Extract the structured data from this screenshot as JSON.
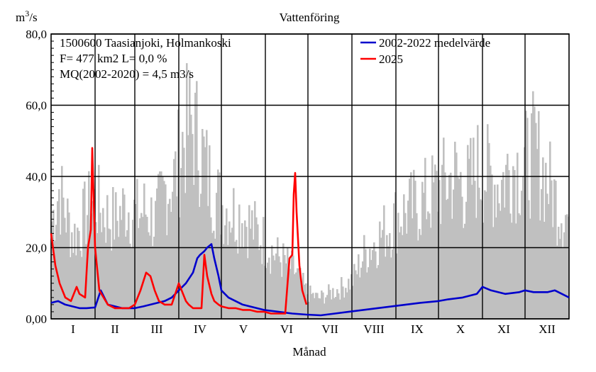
{
  "chart_data": {
    "type": "line",
    "title": "Vattenföring",
    "ylabel_base": "m",
    "ylabel_sup": "3",
    "ylabel_tail": "/s",
    "xlabel": "Månad",
    "ylim": [
      0,
      80
    ],
    "yticks": [
      "0,00",
      "20,0",
      "40,0",
      "60,0",
      "80,0"
    ],
    "ytick_values": [
      0,
      20,
      40,
      60,
      80
    ],
    "months": [
      "I",
      "II",
      "III",
      "IV",
      "V",
      "VI",
      "VII",
      "VIII",
      "IX",
      "X",
      "XI",
      "XII"
    ],
    "grid": true,
    "info_lines": [
      "1500600 Taasianjoki, Holmankoski",
      "F=    477 km2 L=  0,0 %",
      "MQ(2002-2020) = 4,5 m3/s"
    ],
    "legend": [
      {
        "label": "2002-2022 medelvärde",
        "color": "#0000cc"
      },
      {
        "label": "2025",
        "color": "#ff0000"
      }
    ],
    "range_color": "#c0c0c0",
    "range_envelope": {
      "x": [
        0,
        5,
        10,
        15,
        20,
        25,
        31,
        38,
        45,
        52,
        59,
        66,
        73,
        80,
        87,
        92,
        97,
        103,
        110,
        118,
        126,
        134,
        142,
        150,
        157,
        164,
        172,
        180,
        188,
        196,
        204,
        212,
        220,
        228,
        236,
        244,
        252,
        260,
        268,
        276,
        284,
        292,
        300,
        308,
        316,
        324,
        332,
        340,
        348,
        356,
        365
      ],
      "y": [
        38,
        50,
        40,
        32,
        35,
        42,
        45,
        40,
        38,
        44,
        40,
        42,
        38,
        50,
        55,
        68,
        75,
        70,
        55,
        45,
        42,
        40,
        35,
        30,
        25,
        22,
        18,
        10,
        8,
        10,
        12,
        15,
        25,
        30,
        35,
        40,
        42,
        45,
        48,
        52,
        55,
        50,
        58,
        55,
        52,
        60,
        58,
        65,
        55,
        45,
        38
      ]
    },
    "series": [
      {
        "name": "2002-2022 medelvärde",
        "color": "#0000cc",
        "x": [
          0,
          5,
          10,
          15,
          20,
          25,
          31,
          35,
          40,
          45,
          50,
          59,
          65,
          70,
          75,
          80,
          85,
          90,
          95,
          100,
          103,
          105,
          108,
          110,
          113,
          115,
          118,
          120,
          125,
          130,
          135,
          140,
          145,
          150,
          160,
          170,
          180,
          190,
          200,
          210,
          220,
          230,
          240,
          250,
          260,
          273,
          280,
          290,
          300,
          304,
          310,
          320,
          330,
          334,
          340,
          350,
          355,
          360,
          365
        ],
        "y": [
          4.5,
          5.0,
          4.0,
          3.5,
          3.0,
          3.0,
          3.2,
          8.0,
          4.0,
          3.5,
          3.0,
          3.0,
          3.5,
          4.0,
          4.5,
          5.0,
          6.0,
          8.0,
          10.0,
          13.0,
          17.0,
          18.0,
          19.0,
          20.0,
          21.0,
          17.0,
          12.0,
          8.0,
          6.0,
          5.0,
          4.0,
          3.5,
          3.0,
          2.5,
          2.0,
          1.5,
          1.2,
          1.0,
          1.5,
          2.0,
          2.5,
          3.0,
          3.5,
          4.0,
          4.5,
          5.0,
          5.5,
          6.0,
          7.0,
          9.0,
          8.0,
          7.0,
          7.5,
          8.0,
          7.5,
          7.5,
          8.0,
          7.0,
          6.0
        ]
      },
      {
        "name": "2025",
        "color": "#ff0000",
        "x": [
          0,
          3,
          6,
          10,
          14,
          18,
          20,
          24,
          26,
          28,
          29,
          31,
          34,
          40,
          45,
          50,
          55,
          59,
          63,
          67,
          70,
          73,
          76,
          80,
          85,
          90,
          92,
          95,
          97,
          100,
          103,
          106,
          108,
          110,
          113,
          115,
          118,
          120,
          125,
          130,
          135,
          140,
          145,
          150,
          155,
          160,
          165,
          168,
          170,
          171,
          172,
          173,
          175,
          177,
          180
        ],
        "y": [
          24.0,
          15.0,
          10.0,
          6.0,
          5.0,
          9.0,
          7.0,
          6.0,
          20.0,
          25.0,
          48.0,
          20.0,
          8.0,
          4.0,
          3.0,
          3.0,
          3.0,
          4.0,
          8.0,
          13.0,
          12.0,
          8.0,
          5.0,
          4.0,
          4.0,
          10.0,
          8.0,
          5.0,
          4.0,
          3.0,
          3.0,
          3.0,
          18.0,
          12.0,
          7.0,
          5.0,
          4.0,
          3.5,
          3.0,
          3.0,
          2.5,
          2.5,
          2.0,
          2.0,
          1.5,
          1.5,
          1.5,
          17.0,
          18.0,
          35.0,
          41.0,
          30.0,
          15.0,
          8.0,
          4.0
        ]
      }
    ]
  }
}
